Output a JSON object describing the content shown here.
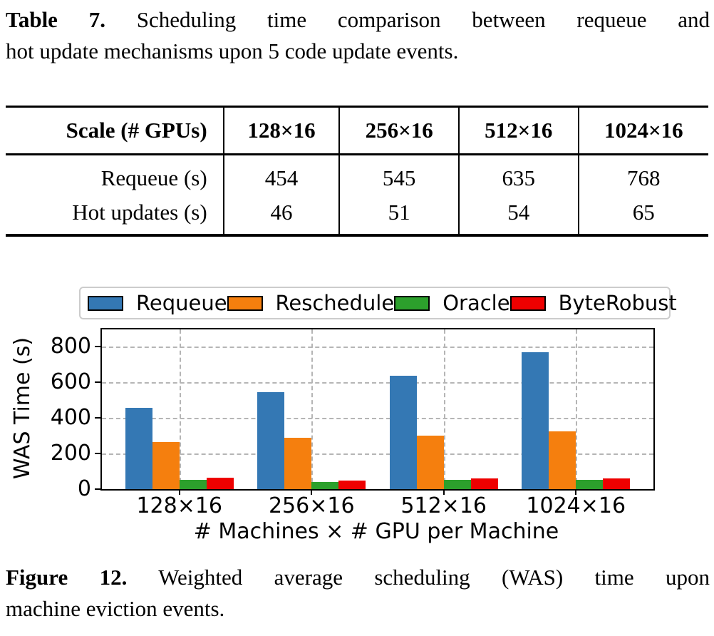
{
  "table_caption": {
    "label": "Table 7.",
    "lines": [
      "Scheduling time comparison between requeue and",
      "hot update mechanisms upon 5 code update events."
    ]
  },
  "table": {
    "headers": [
      "Scale (# GPUs)",
      "128×16",
      "256×16",
      "512×16",
      "1024×16"
    ],
    "rows": [
      {
        "label": "Requeue (s)",
        "values": [
          "454",
          "545",
          "635",
          "768"
        ]
      },
      {
        "label": "Hot updates (s)",
        "values": [
          "46",
          "51",
          "54",
          "65"
        ]
      }
    ]
  },
  "chart_data": {
    "type": "bar",
    "categories": [
      "128×16",
      "256×16",
      "512×16",
      "1024×16"
    ],
    "series": [
      {
        "name": "Requeue",
        "color": "#3478b4",
        "values": [
          454,
          545,
          635,
          768
        ]
      },
      {
        "name": "Reschedule",
        "color": "#f57f0e",
        "values": [
          265,
          288,
          300,
          322
        ]
      },
      {
        "name": "Oracle",
        "color": "#2ca02c",
        "values": [
          53,
          42,
          53,
          53
        ]
      },
      {
        "name": "ByteRobust",
        "color": "#ee0000",
        "values": [
          63,
          48,
          60,
          60
        ]
      }
    ],
    "xlabel": "# Machines × # GPU per Machine",
    "ylabel": "WAS Time (s)",
    "ylim": [
      0,
      895
    ],
    "yticks": [
      0,
      200,
      400,
      600,
      800
    ],
    "grid": "dashed",
    "legend_position": "top"
  },
  "figure_caption": {
    "label": "Figure 12.",
    "lines": [
      "Weighted average scheduling (WAS) time upon",
      "machine eviction events."
    ]
  }
}
